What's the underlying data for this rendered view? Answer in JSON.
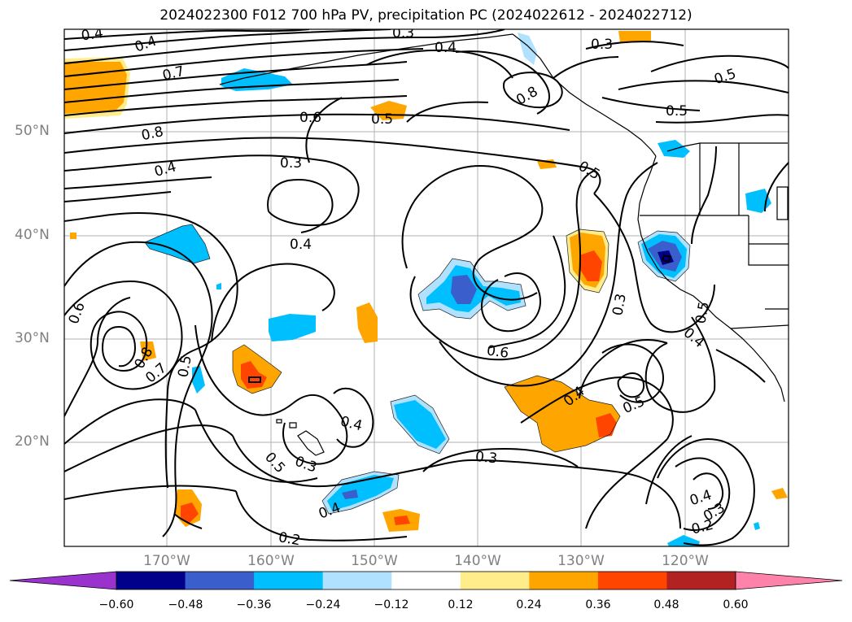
{
  "title": "2024022300 F012 700 hPa PV, precipitation PC (2024022612 - 2024022712)",
  "lat_labels": [
    "50°N",
    "40°N",
    "30°N",
    "20°N"
  ],
  "lon_labels": [
    "170°W",
    "160°W",
    "150°W",
    "140°W",
    "130°W",
    "120°W"
  ],
  "colorbar": {
    "ticks": [
      "−0.60",
      "−0.48",
      "−0.36",
      "−0.24",
      "−0.12",
      "0.12",
      "0.24",
      "0.36",
      "0.48",
      "0.60"
    ],
    "colors": [
      "#9a32cd",
      "#00008b",
      "#3a5fcd",
      "#00bfff",
      "#b0e2ff",
      "#ffffff",
      "#ffec8b",
      "#ffa500",
      "#ff4500",
      "#b22222",
      "#ff82ab"
    ]
  },
  "contour_labels": [
    "0.4",
    "0.4",
    "0.7",
    "0.8",
    "0.4",
    "0.6",
    "0.5",
    "0.3",
    "0.3",
    "0.4",
    "0.3",
    "0.8",
    "0.5",
    "0.5",
    "0.5",
    "0.4",
    "0.6",
    "0.8",
    "0.7",
    "0.5",
    "0.4",
    "0.5",
    "0.3",
    "0.3",
    "0.2",
    "0.4",
    "0.6",
    "0.4",
    "0.5",
    "0.3",
    "0.4",
    "0.3",
    "0.2",
    "0.5",
    "0.4"
  ]
}
